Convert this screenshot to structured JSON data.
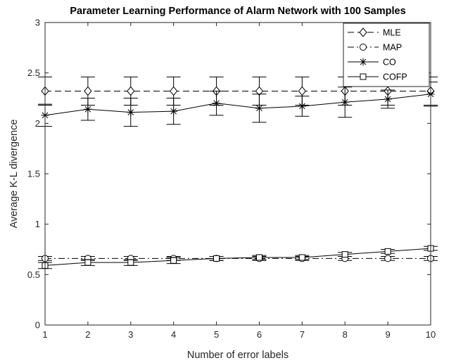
{
  "chart_data": {
    "type": "line",
    "title": "Parameter Learning Performance of Alarm Network with 100 Samples",
    "xlabel": "Number of error labels",
    "ylabel": "Average K-L divergence",
    "x": [
      1,
      2,
      3,
      4,
      5,
      6,
      7,
      8,
      9,
      10
    ],
    "xlim": [
      1,
      10
    ],
    "ylim": [
      0,
      3
    ],
    "x_ticks": [
      1,
      2,
      3,
      4,
      5,
      6,
      7,
      8,
      9,
      10
    ],
    "x_tick_labels": [
      "1",
      "2",
      "3",
      "4",
      "5",
      "6",
      "7",
      "8",
      "9",
      "10"
    ],
    "y_ticks": [
      0,
      0.5,
      1,
      1.5,
      2,
      2.5,
      3
    ],
    "y_tick_labels": [
      "0",
      "0.5",
      "1",
      "1.5",
      "2",
      "2.5",
      "3"
    ],
    "grid": false,
    "legend_position": "top-right",
    "series": [
      {
        "name": "MLE",
        "marker": "diamond",
        "line_style": "dashed",
        "color": "#000000",
        "values": [
          2.32,
          2.32,
          2.32,
          2.32,
          2.32,
          2.32,
          2.32,
          2.32,
          2.32,
          2.32
        ],
        "errors": [
          0.14,
          0.14,
          0.14,
          0.14,
          0.14,
          0.14,
          0.14,
          0.14,
          0.14,
          0.14
        ]
      },
      {
        "name": "MAP",
        "marker": "circle",
        "line_style": "dash-dot",
        "color": "#000000",
        "values": [
          0.66,
          0.66,
          0.66,
          0.66,
          0.66,
          0.66,
          0.66,
          0.66,
          0.66,
          0.66
        ],
        "errors": [
          0.02,
          0.02,
          0.02,
          0.02,
          0.02,
          0.02,
          0.02,
          0.02,
          0.02,
          0.02
        ]
      },
      {
        "name": "CO",
        "marker": "star",
        "line_style": "solid",
        "color": "#000000",
        "values": [
          2.08,
          2.14,
          2.11,
          2.12,
          2.2,
          2.15,
          2.17,
          2.21,
          2.24,
          2.29
        ],
        "errors": [
          0.11,
          0.11,
          0.14,
          0.13,
          0.12,
          0.14,
          0.1,
          0.15,
          0.09,
          0.12
        ]
      },
      {
        "name": "COFP",
        "marker": "square",
        "line_style": "solid",
        "color": "#000000",
        "values": [
          0.59,
          0.62,
          0.62,
          0.64,
          0.66,
          0.67,
          0.67,
          0.7,
          0.73,
          0.76
        ],
        "errors": [
          0.03,
          0.03,
          0.03,
          0.03,
          0.02,
          0.02,
          0.02,
          0.02,
          0.02,
          0.02
        ]
      }
    ]
  }
}
